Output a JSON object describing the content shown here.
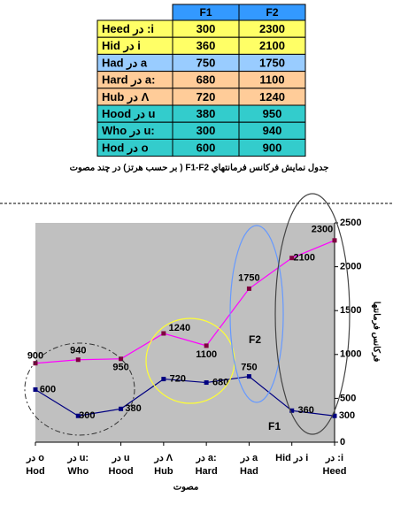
{
  "table": {
    "header": [
      "F1",
      "F2"
    ],
    "rows": [
      [
        "Heed در :i",
        300,
        2300
      ],
      [
        "Hid در i",
        360,
        2100
      ],
      [
        "Had در a",
        750,
        1750
      ],
      [
        "Hard در a:",
        680,
        1100
      ],
      [
        "Hub در Λ",
        720,
        1240
      ],
      [
        "Hood در u",
        380,
        950
      ],
      [
        "Who در u:",
        300,
        940
      ],
      [
        "Hod در o",
        600,
        900
      ]
    ],
    "row_colors": [
      "#ffff66",
      "#ffff66",
      "#99ccff",
      "#ffcc99",
      "#ffcc99",
      "#33cccc",
      "#33cccc",
      "#33cccc"
    ],
    "header_color": "#3399ff",
    "caption": "جدول نمايش فركانس فرمانتهاي F1-F2 ( بر حسب هرتز) در چند مصوت"
  },
  "chart_data": {
    "type": "line",
    "categories": [
      [
        "در o",
        "Hod"
      ],
      [
        "در u:",
        "Who"
      ],
      [
        "در u",
        "Hood"
      ],
      [
        "در Λ",
        "Hub"
      ],
      [
        "در a:",
        "Hard"
      ],
      [
        "در a",
        "Had"
      ],
      [
        "Hid در i"
      ],
      [
        "در :i",
        "Heed"
      ]
    ],
    "series": [
      {
        "name": "F2",
        "color": "#ff00ff",
        "marker_color": "#800040",
        "values": [
          900,
          940,
          950,
          1240,
          1100,
          1750,
          2100,
          2300
        ]
      },
      {
        "name": "F1",
        "color": "#000080",
        "marker_color": "#000080",
        "values": [
          600,
          300,
          380,
          720,
          680,
          750,
          360,
          300
        ]
      }
    ],
    "ylim": [
      0,
      2500
    ],
    "yticks": [
      0,
      500,
      1000,
      1500,
      2000,
      2500
    ],
    "y_label": "فركانس فرمانتها",
    "x_label": "مصوت",
    "background": "#c0c0c0",
    "grid": false
  }
}
